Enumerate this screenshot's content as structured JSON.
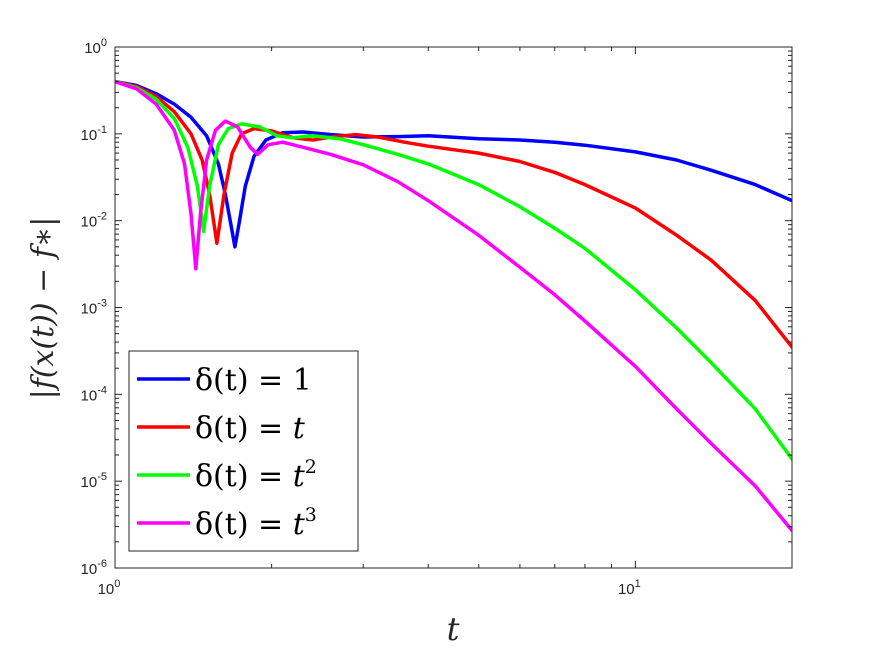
{
  "chart_data": {
    "type": "line",
    "title": "",
    "xlabel": "t",
    "ylabel": "|f(x(t)) − f∗|",
    "xscale": "log",
    "yscale": "log",
    "xlim": [
      1,
      20
    ],
    "ylim": [
      1e-06,
      1
    ],
    "grid": false,
    "legend_position": "bottom-left",
    "x_ticks": [
      {
        "value": 1,
        "base": "10",
        "exp": "0"
      },
      {
        "value": 10,
        "base": "10",
        "exp": "1"
      }
    ],
    "y_ticks": [
      {
        "value": 1,
        "base": "10",
        "exp": "0"
      },
      {
        "value": 0.1,
        "base": "10",
        "exp": "-1"
      },
      {
        "value": 0.01,
        "base": "10",
        "exp": "-2"
      },
      {
        "value": 0.001,
        "base": "10",
        "exp": "-3"
      },
      {
        "value": 0.0001,
        "base": "10",
        "exp": "-4"
      },
      {
        "value": 1e-05,
        "base": "10",
        "exp": "-5"
      },
      {
        "value": 1e-06,
        "base": "10",
        "exp": "-6"
      }
    ],
    "series": [
      {
        "name": "δ(t) = 1",
        "legend": {
          "lhs": "δ(t) = ",
          "base": "1",
          "exp": ""
        },
        "color": "#0000ff",
        "points": [
          [
            1.0,
            0.4
          ],
          [
            1.1,
            0.36
          ],
          [
            1.2,
            0.29
          ],
          [
            1.3,
            0.22
          ],
          [
            1.4,
            0.155
          ],
          [
            1.5,
            0.095
          ],
          [
            1.58,
            0.045
          ],
          [
            1.63,
            0.02
          ],
          [
            1.67,
            0.009
          ],
          [
            1.7,
            0.005
          ],
          [
            1.73,
            0.009
          ],
          [
            1.78,
            0.025
          ],
          [
            1.85,
            0.055
          ],
          [
            1.95,
            0.085
          ],
          [
            2.1,
            0.103
          ],
          [
            2.3,
            0.105
          ],
          [
            2.6,
            0.098
          ],
          [
            3.0,
            0.092
          ],
          [
            3.5,
            0.093
          ],
          [
            4.0,
            0.095
          ],
          [
            5.0,
            0.088
          ],
          [
            6.0,
            0.085
          ],
          [
            7.0,
            0.08
          ],
          [
            8.0,
            0.074
          ],
          [
            10.0,
            0.062
          ],
          [
            12.0,
            0.05
          ],
          [
            14.0,
            0.038
          ],
          [
            17.0,
            0.026
          ],
          [
            20.0,
            0.017
          ]
        ]
      },
      {
        "name": "δ(t) = t",
        "legend": {
          "lhs": "δ(t) = ",
          "base": "t",
          "exp": ""
        },
        "color": "#ff0000",
        "points": [
          [
            1.0,
            0.4
          ],
          [
            1.1,
            0.35
          ],
          [
            1.2,
            0.27
          ],
          [
            1.3,
            0.18
          ],
          [
            1.4,
            0.1
          ],
          [
            1.47,
            0.05
          ],
          [
            1.52,
            0.02
          ],
          [
            1.57,
            0.0055
          ],
          [
            1.62,
            0.02
          ],
          [
            1.68,
            0.06
          ],
          [
            1.75,
            0.1
          ],
          [
            1.85,
            0.115
          ],
          [
            2.0,
            0.108
          ],
          [
            2.2,
            0.09
          ],
          [
            2.4,
            0.085
          ],
          [
            2.6,
            0.092
          ],
          [
            2.9,
            0.098
          ],
          [
            3.2,
            0.092
          ],
          [
            3.6,
            0.08
          ],
          [
            4.0,
            0.072
          ],
          [
            5.0,
            0.06
          ],
          [
            6.0,
            0.048
          ],
          [
            7.0,
            0.036
          ],
          [
            8.0,
            0.026
          ],
          [
            10.0,
            0.014
          ],
          [
            12.0,
            0.0068
          ],
          [
            14.0,
            0.0035
          ],
          [
            17.0,
            0.0012
          ],
          [
            20.0,
            0.00035
          ]
        ]
      },
      {
        "name": "δ(t) = t²",
        "legend": {
          "lhs": "δ(t) = ",
          "base": "t",
          "exp": "2"
        },
        "color": "#00ff00",
        "points": [
          [
            1.0,
            0.4
          ],
          [
            1.1,
            0.34
          ],
          [
            1.2,
            0.25
          ],
          [
            1.3,
            0.15
          ],
          [
            1.38,
            0.07
          ],
          [
            1.44,
            0.025
          ],
          [
            1.48,
            0.0075
          ],
          [
            1.52,
            0.025
          ],
          [
            1.58,
            0.075
          ],
          [
            1.65,
            0.115
          ],
          [
            1.75,
            0.13
          ],
          [
            1.9,
            0.12
          ],
          [
            2.05,
            0.095
          ],
          [
            2.2,
            0.09
          ],
          [
            2.4,
            0.095
          ],
          [
            2.7,
            0.088
          ],
          [
            3.0,
            0.075
          ],
          [
            3.5,
            0.058
          ],
          [
            4.0,
            0.045
          ],
          [
            5.0,
            0.026
          ],
          [
            6.0,
            0.0145
          ],
          [
            7.0,
            0.0082
          ],
          [
            8.0,
            0.0048
          ],
          [
            10.0,
            0.0016
          ],
          [
            12.0,
            0.00058
          ],
          [
            14.0,
            0.00023
          ],
          [
            17.0,
            6.8e-05
          ],
          [
            20.0,
            1.8e-05
          ]
        ]
      },
      {
        "name": "δ(t) = t³",
        "legend": {
          "lhs": "δ(t) = ",
          "base": "t",
          "exp": "3"
        },
        "color": "#ff00ff",
        "points": [
          [
            1.0,
            0.4
          ],
          [
            1.1,
            0.33
          ],
          [
            1.2,
            0.22
          ],
          [
            1.3,
            0.11
          ],
          [
            1.36,
            0.045
          ],
          [
            1.4,
            0.012
          ],
          [
            1.43,
            0.0028
          ],
          [
            1.46,
            0.012
          ],
          [
            1.5,
            0.05
          ],
          [
            1.56,
            0.11
          ],
          [
            1.63,
            0.14
          ],
          [
            1.72,
            0.12
          ],
          [
            1.82,
            0.07
          ],
          [
            1.88,
            0.058
          ],
          [
            1.97,
            0.075
          ],
          [
            2.1,
            0.08
          ],
          [
            2.3,
            0.07
          ],
          [
            2.6,
            0.058
          ],
          [
            3.0,
            0.044
          ],
          [
            3.5,
            0.028
          ],
          [
            4.0,
            0.017
          ],
          [
            5.0,
            0.0068
          ],
          [
            6.0,
            0.0029
          ],
          [
            7.0,
            0.0014
          ],
          [
            8.0,
            0.0007
          ],
          [
            10.0,
            0.00021
          ],
          [
            12.0,
            6.8e-05
          ],
          [
            14.0,
            2.7e-05
          ],
          [
            17.0,
            8.8e-06
          ],
          [
            20.0,
            2.7e-06
          ]
        ]
      }
    ]
  }
}
